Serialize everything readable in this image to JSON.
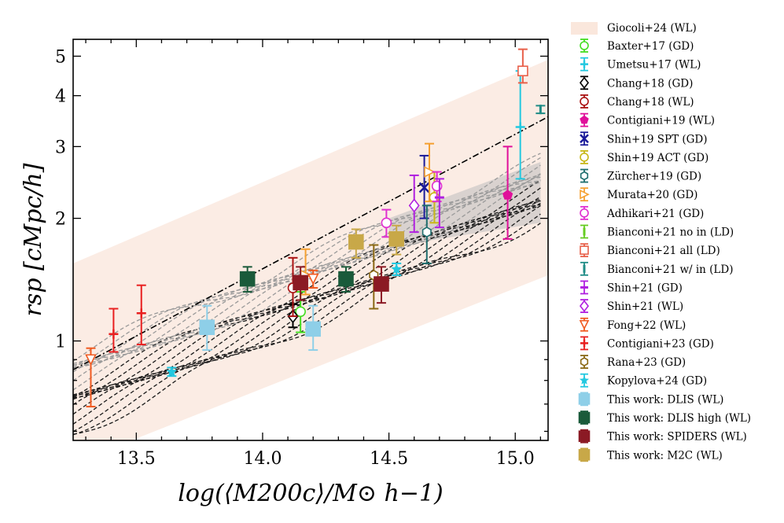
{
  "chart_data": {
    "type": "scatter",
    "xlabel": "log(⟨M200c⟩/M⊙ h−1)",
    "ylabel": "rsp [cMpc/h]",
    "xlim": [
      13.25,
      15.13
    ],
    "ylim": [
      0.57,
      5.5
    ],
    "yscale": "log",
    "x_ticks": [
      "13.5",
      "14.0",
      "14.5",
      "15.0"
    ],
    "y_ticks": [
      "1",
      "2",
      "3",
      "4",
      "5"
    ],
    "colors": {
      "band": "#f9e4d8",
      "sim_light": "#9a9a9a",
      "sim_dark": "#1a1a1a",
      "bianconi_all": "#e8604a",
      "bianconi_cyan": "#19b3b9"
    },
    "band": {
      "name": "Giocoli+24 (WL)",
      "x": [
        13.25,
        15.13
      ],
      "y_low": [
        0.5,
        1.45
      ],
      "y_high": [
        1.55,
        4.9
      ]
    },
    "fit_line": {
      "x": [
        13.25,
        15.13
      ],
      "y": [
        0.85,
        3.55
      ]
    },
    "series": [
      {
        "name": "Baxter+17 (GD)",
        "color": "#44dd22",
        "marker": "circle-open",
        "points": [
          {
            "x": 14.15,
            "y": 1.18,
            "ylo": 1.05,
            "yhi": 1.32
          }
        ]
      },
      {
        "name": "Umetsu+17 (WL)",
        "color": "#22c8e0",
        "marker": "plus",
        "points": [
          {
            "x": 15.02,
            "y": 3.35,
            "ylo": 2.5,
            "yhi": 4.6
          }
        ]
      },
      {
        "name": "Chang+18 (GD)",
        "color": "#000000",
        "marker": "diamond-open",
        "points": [
          {
            "x": 14.12,
            "y": 1.15,
            "ylo": 1.08,
            "yhi": 1.23
          }
        ]
      },
      {
        "name": "Chang+18 (WL)",
        "color": "#aa1111",
        "marker": "circle-open",
        "points": [
          {
            "x": 14.12,
            "y": 1.35,
            "ylo": 1.15,
            "yhi": 1.6
          }
        ]
      },
      {
        "name": "Contigiani+19 (WL)",
        "color": "#e0109a",
        "marker": "pentagon",
        "points": [
          {
            "x": 14.97,
            "y": 2.28,
            "ylo": 1.78,
            "yhi": 3.0
          }
        ]
      },
      {
        "name": "Shin+19 SPT (GD)",
        "color": "#1a1a99",
        "marker": "cross",
        "points": [
          {
            "x": 14.64,
            "y": 2.38,
            "ylo": 2.0,
            "yhi": 2.85
          }
        ]
      },
      {
        "name": "Shin+19 ACT (GD)",
        "color": "#c8b818",
        "marker": "circle-open",
        "points": [
          {
            "x": 14.68,
            "y": 2.25,
            "ylo": 1.95,
            "yhi": 2.6
          }
        ]
      },
      {
        "name": "Zürcher+19 (GD)",
        "color": "#1f6e6e",
        "marker": "hexagon-open",
        "points": [
          {
            "x": 14.65,
            "y": 1.85,
            "ylo": 1.55,
            "yhi": 2.15
          }
        ]
      },
      {
        "name": "Murata+20 (GD)",
        "color": "#f5a030",
        "marker": "triangle-right-open",
        "points": [
          {
            "x": 14.17,
            "y": 1.45,
            "ylo": 1.3,
            "yhi": 1.68
          },
          {
            "x": 14.66,
            "y": 2.6,
            "ylo": 2.2,
            "yhi": 3.05
          }
        ]
      },
      {
        "name": "Adhikari+21 (GD)",
        "color": "#e030d0",
        "marker": "circle-open",
        "points": [
          {
            "x": 14.49,
            "y": 1.95,
            "ylo": 1.8,
            "yhi": 2.1
          },
          {
            "x": 14.69,
            "y": 2.4,
            "ylo": 2.2,
            "yhi": 2.6
          }
        ]
      },
      {
        "name": "Bianconi+21 no in (LD)",
        "color": "#66cc22",
        "marker": "vbar",
        "points": []
      },
      {
        "name": "Bianconi+21 all (LD)",
        "color": "#e8604a",
        "marker": "square-open",
        "points": [
          {
            "x": 15.03,
            "y": 4.6,
            "ylo": 4.3,
            "yhi": 5.2
          }
        ]
      },
      {
        "name": "Bianconi+21 w/ in (LD)",
        "color": "#1f8c86",
        "marker": "vbar",
        "points": [
          {
            "x": 15.1,
            "y": 3.7,
            "ylo": 3.62,
            "yhi": 3.78
          }
        ]
      },
      {
        "name": "Shin+21 (GD)",
        "color": "#b020e0",
        "marker": "hbar",
        "points": [
          {
            "x": 14.7,
            "y": 2.25,
            "ylo": 1.9,
            "yhi": 2.5
          }
        ]
      },
      {
        "name": "Shin+21 (WL)",
        "color": "#b020e0",
        "marker": "diamond-open",
        "points": [
          {
            "x": 14.6,
            "y": 2.15,
            "ylo": 1.85,
            "yhi": 2.55
          }
        ]
      },
      {
        "name": "Fong+22 (WL)",
        "color": "#f05a20",
        "marker": "triangle-down-open",
        "points": [
          {
            "x": 13.32,
            "y": 0.9,
            "ylo": 0.69,
            "yhi": 0.96
          },
          {
            "x": 14.2,
            "y": 1.42,
            "ylo": 1.35,
            "yhi": 1.49
          }
        ]
      },
      {
        "name": "Contigiani+23 (GD)",
        "color": "#e82020",
        "marker": "plus-open",
        "points": [
          {
            "x": 13.41,
            "y": 1.04,
            "ylo": 0.94,
            "yhi": 1.2
          },
          {
            "x": 13.52,
            "y": 1.17,
            "ylo": 0.98,
            "yhi": 1.37
          }
        ]
      },
      {
        "name": "Rana+23 (GD)",
        "color": "#8b6914",
        "marker": "hexagon-open",
        "points": [
          {
            "x": 14.44,
            "y": 1.45,
            "ylo": 1.2,
            "yhi": 1.72
          }
        ]
      },
      {
        "name": "Kopylova+24 (GD)",
        "color": "#22c8e0",
        "marker": "star",
        "points": [
          {
            "x": 13.64,
            "y": 0.84,
            "ylo": 0.82,
            "yhi": 0.86
          },
          {
            "x": 14.53,
            "y": 1.5,
            "ylo": 1.45,
            "yhi": 1.55
          }
        ]
      },
      {
        "name": "This work: DLIS (WL)",
        "color": "#8ecfe8",
        "marker": "square",
        "points": [
          {
            "x": 13.78,
            "y": 1.08,
            "ylo": 0.95,
            "yhi": 1.22
          },
          {
            "x": 14.2,
            "y": 1.07,
            "ylo": 0.95,
            "yhi": 1.22
          }
        ]
      },
      {
        "name": "This work: DLIS high (WL)",
        "color": "#1a5a3a",
        "marker": "square",
        "points": [
          {
            "x": 13.94,
            "y": 1.42,
            "ylo": 1.32,
            "yhi": 1.52
          },
          {
            "x": 14.33,
            "y": 1.42,
            "ylo": 1.32,
            "yhi": 1.52
          }
        ]
      },
      {
        "name": "This work: SPIDERS (WL)",
        "color": "#8b1a24",
        "marker": "square",
        "points": [
          {
            "x": 14.15,
            "y": 1.39,
            "ylo": 1.26,
            "yhi": 1.52
          },
          {
            "x": 14.47,
            "y": 1.38,
            "ylo": 1.24,
            "yhi": 1.52
          }
        ]
      },
      {
        "name": "This work: M2C (WL)",
        "color": "#c8a848",
        "marker": "square",
        "points": [
          {
            "x": 14.37,
            "y": 1.75,
            "ylo": 1.6,
            "yhi": 1.88
          },
          {
            "x": 14.53,
            "y": 1.78,
            "ylo": 1.63,
            "yhi": 1.92
          }
        ]
      }
    ]
  }
}
